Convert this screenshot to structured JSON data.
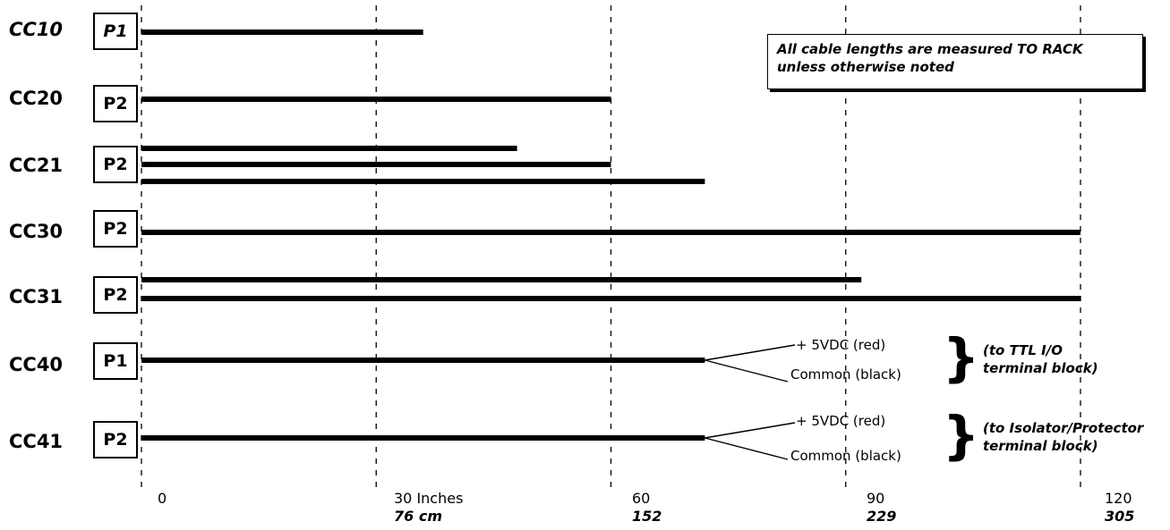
{
  "note": {
    "line1": "All cable lengths are measured TO RACK",
    "line2": "unless otherwise noted"
  },
  "axis": {
    "ticks": [
      {
        "inches": "0",
        "cm": ""
      },
      {
        "inches": "30 Inches",
        "cm": "76 cm"
      },
      {
        "inches": "60",
        "cm": "152"
      },
      {
        "inches": "90",
        "cm": "229"
      },
      {
        "inches": "120",
        "cm": "305"
      }
    ],
    "range_inches": [
      0,
      120
    ]
  },
  "cables": [
    {
      "name": "CC10",
      "connector": "P1",
      "italic": true,
      "lengths_in": [
        36
      ]
    },
    {
      "name": "CC20",
      "connector": "P2",
      "italic": false,
      "lengths_in": [
        60
      ]
    },
    {
      "name": "CC21",
      "connector": "P2",
      "italic": false,
      "lengths_in": [
        48,
        60,
        72
      ]
    },
    {
      "name": "CC30",
      "connector": "P2",
      "italic": false,
      "lengths_in": [
        120
      ]
    },
    {
      "name": "CC31",
      "connector": "P2",
      "italic": false,
      "lengths_in": [
        92,
        120
      ]
    },
    {
      "name": "CC40",
      "connector": "P1",
      "italic": false,
      "lengths_in": [
        72
      ],
      "leads": {
        "top": "+ 5VDC (red)",
        "bottom": "Common (black)"
      },
      "destination": [
        "(to TTL I/O",
        "terminal block)"
      ]
    },
    {
      "name": "CC41",
      "connector": "P2",
      "italic": false,
      "lengths_in": [
        72
      ],
      "leads": {
        "top": "+ 5VDC (red)",
        "bottom": "Common (black)"
      },
      "destination": [
        "(to Isolator/Protector",
        "terminal block)"
      ]
    }
  ]
}
